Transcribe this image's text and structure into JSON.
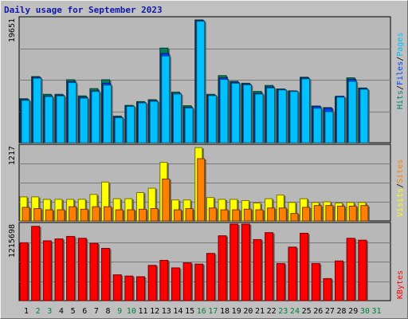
{
  "chart_data": {
    "type": "bar",
    "title": "Daily usage for September 2023",
    "categories": [
      "1",
      "2",
      "3",
      "4",
      "5",
      "6",
      "7",
      "8",
      "9",
      "10",
      "11",
      "12",
      "13",
      "14",
      "15",
      "16",
      "17",
      "18",
      "19",
      "20",
      "21",
      "22",
      "23",
      "24",
      "25",
      "26",
      "27",
      "28",
      "29",
      "30",
      "31"
    ],
    "weekend_days": [
      "2",
      "3",
      "9",
      "10",
      "16",
      "17",
      "23",
      "24",
      "30",
      "31"
    ],
    "panels": [
      {
        "id": "hits-files-pages",
        "max_label": "19651",
        "ymax": 19651,
        "series": [
          {
            "name": "Hits",
            "color": "#00805c",
            "values": [
              6950,
              10450,
              7650,
              7650,
              9950,
              7400,
              8550,
              9950,
              4200,
              5900,
              6500,
              6800,
              14950,
              8000,
              5850,
              19400,
              7650,
              10600,
              9700,
              9400,
              8100,
              9050,
              8500,
              8200,
              10350,
              5800,
              5550,
              7300,
              10250,
              8650,
              0
            ]
          },
          {
            "name": "Files",
            "color": "#0040ff",
            "values": [
              6800,
              10350,
              7400,
              7500,
              9650,
              7200,
              8200,
              9400,
              4050,
              5800,
              6350,
              6650,
              14100,
              7750,
              5600,
              19300,
              7500,
              10250,
              9550,
              9250,
              7800,
              8800,
              8400,
              8150,
              10250,
              5750,
              5450,
              7350,
              10000,
              8550,
              0
            ]
          },
          {
            "name": "Pages",
            "color": "#00c0ff",
            "values": [
              6700,
              10200,
              7300,
              7400,
              9500,
              7050,
              8100,
              9100,
              3950,
              5750,
              6300,
              6550,
              13700,
              7700,
              5500,
              19200,
              7450,
              10000,
              9400,
              9150,
              7700,
              8650,
              8350,
              8100,
              10100,
              5450,
              4900,
              7200,
              9700,
              8450,
              0
            ]
          }
        ]
      },
      {
        "id": "visits-sites",
        "max_label": "1217",
        "ymax": 1217,
        "series": [
          {
            "name": "Visits",
            "color": "#ffff00",
            "values": [
              390,
              390,
              350,
              350,
              350,
              350,
              430,
              630,
              360,
              360,
              460,
              530,
              950,
              340,
              340,
              1190,
              380,
              350,
              350,
              330,
              290,
              360,
              420,
              300,
              360,
              300,
              310,
              290,
              300,
              300,
              0
            ]
          },
          {
            "name": "Sites",
            "color": "#ff8000",
            "values": [
              220,
              200,
              180,
              180,
              230,
              190,
              230,
              230,
              180,
              180,
              190,
              200,
              680,
              180,
              200,
              1010,
              210,
              180,
              180,
              190,
              180,
              210,
              210,
              120,
              220,
              250,
              250,
              240,
              240,
              250,
              0
            ]
          }
        ]
      },
      {
        "id": "kbytes",
        "max_label": "1215698",
        "ymax": 1215698,
        "series": [
          {
            "name": "KBytes",
            "color": "#ff0000",
            "values": [
              920000,
              1180000,
              950000,
              980000,
              1020000,
              990000,
              910000,
              830000,
              410000,
              390000,
              380000,
              560000,
              640000,
              520000,
              600000,
              580000,
              750000,
              1030000,
              1215698,
              1215698,
              970000,
              1080000,
              590000,
              850000,
              1070000,
              590000,
              350000,
              630000,
              990000,
              960000,
              0
            ]
          }
        ]
      }
    ],
    "legend": {
      "top": [
        {
          "text": "Hits",
          "color": "#00805c"
        },
        {
          "text": "/",
          "color": "#000000"
        },
        {
          "text": "Files",
          "color": "#0040ff"
        },
        {
          "text": "/",
          "color": "#000000"
        },
        {
          "text": "Pages",
          "color": "#00c0ff"
        }
      ],
      "middle": [
        {
          "text": "Visits",
          "color": "#ffff00"
        },
        {
          "text": "/",
          "color": "#000000"
        },
        {
          "text": "Sites",
          "color": "#ff8000"
        }
      ],
      "bottom": [
        {
          "text": "KBytes",
          "color": "#ff0000"
        }
      ]
    },
    "grid": true
  }
}
